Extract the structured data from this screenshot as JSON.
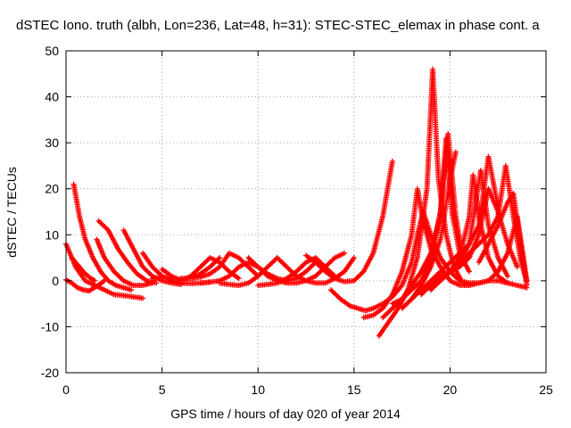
{
  "chart_data": {
    "type": "scatter",
    "title": "dSTEC Iono. truth (albh, Lon=236, Lat=48, h=31): STEC-STEC_elemax in phase cont. a",
    "xlabel": "GPS time / hours of day 020 of year 2014",
    "ylabel": "dSTEC  / TECUs",
    "xlim": [
      0,
      25
    ],
    "ylim": [
      -20,
      50
    ],
    "xticks": [
      0,
      5,
      10,
      15,
      20,
      25
    ],
    "yticks": [
      -20,
      -10,
      0,
      10,
      20,
      30,
      40,
      50
    ],
    "grid": true,
    "marker": "plus",
    "color": "#ff0000",
    "series": [
      {
        "x": [
          0.0,
          0.5,
          1.0,
          1.5,
          2.0,
          2.5,
          3.0,
          3.5,
          4.0
        ],
        "y": [
          8,
          3,
          0,
          -1,
          -2,
          -3,
          -3.2,
          -3.5,
          -3.8
        ]
      },
      {
        "x": [
          0.0,
          0.3,
          0.6,
          0.9,
          1.2,
          1.6,
          2.0
        ],
        "y": [
          0.2,
          -0.5,
          -1.5,
          -2,
          -2.2,
          -1.2,
          0
        ]
      },
      {
        "x": [
          0.4,
          0.7,
          1.0,
          1.4,
          1.8,
          2.2,
          2.6,
          3.0,
          3.4
        ],
        "y": [
          21,
          14,
          9,
          5,
          2,
          0,
          -1,
          -1.5,
          -2
        ]
      },
      {
        "x": [
          0.3,
          0.7,
          1.0,
          1.3,
          1.5
        ],
        "y": [
          5,
          3,
          1.5,
          0.5,
          0
        ]
      },
      {
        "x": [
          1.6,
          2.0,
          2.5,
          3.0,
          3.5,
          4.0,
          4.5
        ],
        "y": [
          9,
          5,
          2,
          0,
          -1,
          -1,
          -0.5
        ]
      },
      {
        "x": [
          1.7,
          2.2,
          2.7,
          3.2,
          3.7,
          4.2,
          4.7
        ],
        "y": [
          13,
          11,
          7,
          4,
          1.5,
          0,
          -0.5
        ]
      },
      {
        "x": [
          3.0,
          3.5,
          4.0,
          4.5,
          5.0,
          5.5,
          6.0
        ],
        "y": [
          11,
          7,
          3,
          1,
          0,
          -0.5,
          -0.8
        ]
      },
      {
        "x": [
          4.0,
          4.5,
          5.0,
          5.5,
          6.0,
          6.5,
          7.0,
          7.5
        ],
        "y": [
          6,
          3,
          1,
          0,
          -0.5,
          -0.6,
          -0.5,
          -0.3
        ]
      },
      {
        "x": [
          4.5,
          5.0,
          5.5,
          6.0,
          6.5,
          7.0,
          7.5,
          8.0
        ],
        "y": [
          0.5,
          0.8,
          0.5,
          0.3,
          0.5,
          1.5,
          3,
          5
        ]
      },
      {
        "x": [
          5.0,
          5.5,
          6.0,
          6.5,
          7.0,
          7.5,
          8.0,
          8.5,
          9.0
        ],
        "y": [
          2.5,
          1,
          0,
          1,
          3,
          5,
          4,
          2,
          0.5
        ]
      },
      {
        "x": [
          6.0,
          6.5,
          7.0,
          7.5,
          8.0,
          8.5,
          9.0,
          9.5,
          10.0
        ],
        "y": [
          0.5,
          0.5,
          0.8,
          1.5,
          3,
          6,
          5,
          3,
          1
        ]
      },
      {
        "x": [
          7.0,
          7.5,
          8.0,
          8.5,
          9.0,
          9.5,
          10.0,
          10.5,
          11.0
        ],
        "y": [
          -0.5,
          -0.3,
          0,
          1,
          3,
          4,
          3,
          1,
          0
        ]
      },
      {
        "x": [
          8.0,
          8.5,
          9.0,
          9.5,
          10.0,
          10.5,
          11.0,
          11.5,
          12.0
        ],
        "y": [
          -0.5,
          -0.8,
          -1,
          -0.5,
          1,
          3,
          5,
          3,
          1
        ]
      },
      {
        "x": [
          9.5,
          10.0,
          10.5,
          11.0,
          11.5,
          12.0,
          12.5,
          13.0
        ],
        "y": [
          5,
          3,
          1.5,
          0.5,
          0,
          0.5,
          2,
          4
        ]
      },
      {
        "x": [
          10.0,
          10.5,
          11.0,
          11.5,
          12.0,
          12.5,
          13.0,
          13.5,
          14.0
        ],
        "y": [
          -1,
          -0.8,
          -0.5,
          0.5,
          2,
          4,
          5,
          3,
          1
        ]
      },
      {
        "x": [
          11.0,
          11.5,
          12.0,
          12.5,
          13.0,
          13.5,
          14.0,
          14.5
        ],
        "y": [
          0,
          -0.5,
          -0.5,
          0,
          1,
          3,
          5,
          6
        ]
      },
      {
        "x": [
          12.0,
          12.5,
          13.0,
          13.5,
          14.0,
          14.5,
          15.0
        ],
        "y": [
          1,
          0,
          -0.5,
          -0.5,
          0.5,
          2,
          5
        ]
      },
      {
        "x": [
          12.5,
          13.0,
          13.5,
          14.0,
          14.5,
          15.0,
          15.5,
          16.0,
          16.5,
          17.0
        ],
        "y": [
          5.5,
          4,
          2,
          0.5,
          -0.2,
          0,
          2,
          6,
          14,
          26
        ]
      },
      {
        "x": [
          13.8,
          14.3,
          14.8,
          15.2,
          15.6,
          16.0,
          16.5,
          17.0,
          17.5,
          18.0,
          18.3,
          18.6,
          19.0,
          19.5,
          20.0,
          20.5,
          21.0,
          21.5,
          22.0,
          22.5,
          23.0,
          23.5,
          24.0
        ],
        "y": [
          -2,
          -4,
          -5.5,
          -6,
          -6.5,
          -6,
          -5,
          -3.5,
          -1,
          4,
          10,
          15,
          10,
          5,
          2,
          0,
          -0.5,
          -0.5,
          0,
          0,
          -0.5,
          -1,
          -1.5
        ]
      },
      {
        "x": [
          15.5,
          16.0,
          16.5,
          17.0,
          17.5,
          18.0,
          18.3,
          18.6,
          19.0,
          19.5,
          20.0,
          20.5,
          21.0
        ],
        "y": [
          -8,
          -7.5,
          -6,
          -3,
          2,
          10,
          20,
          13,
          7,
          3,
          0,
          -1,
          -1
        ]
      },
      {
        "x": [
          16.3,
          16.8,
          17.3,
          17.8,
          18.3,
          18.8,
          19.1,
          19.4,
          19.8,
          20.2,
          20.6
        ],
        "y": [
          -12,
          -9,
          -6,
          -2,
          5,
          20,
          46,
          22,
          10,
          3,
          0
        ]
      },
      {
        "x": [
          17.0,
          17.5,
          18.0,
          18.5,
          19.0,
          19.5,
          19.8,
          20.1,
          20.5,
          21.0
        ],
        "y": [
          -5,
          -4,
          -2,
          0,
          5,
          15,
          31,
          15,
          6,
          2
        ]
      },
      {
        "x": [
          16.5,
          17.0,
          17.5,
          18.0,
          18.5,
          19.0,
          19.5,
          19.9,
          20.3,
          20.7
        ],
        "y": [
          -8,
          -6,
          -4,
          -1,
          2,
          6,
          14,
          32,
          14,
          4
        ]
      },
      {
        "x": [
          17.5,
          18.0,
          18.5,
          19.0,
          19.5,
          20.0,
          20.3
        ],
        "y": [
          -6,
          -4,
          -1,
          3,
          9,
          22,
          28
        ]
      },
      {
        "x": [
          18.0,
          18.5,
          19.0,
          19.5,
          20.0,
          20.5,
          21.0,
          21.5,
          22.0,
          22.5
        ],
        "y": [
          -4,
          -2,
          0,
          2,
          4,
          6,
          8,
          12,
          27,
          16
        ]
      },
      {
        "x": [
          18.5,
          19.0,
          19.5,
          20.0,
          20.5,
          21.0,
          21.5,
          22.0,
          22.5,
          23.0,
          23.5
        ],
        "y": [
          -3,
          -1,
          1,
          2,
          3,
          5,
          10,
          20,
          15,
          8,
          3
        ]
      },
      {
        "x": [
          19.0,
          19.5,
          20.0,
          20.5,
          21.0,
          21.3,
          21.6,
          22.0,
          22.5,
          23.0
        ],
        "y": [
          -2,
          0,
          2,
          4,
          8,
          16,
          24,
          12,
          5,
          1
        ]
      },
      {
        "x": [
          19.5,
          20.0,
          20.5,
          21.0,
          21.5,
          22.0,
          22.5,
          22.9,
          23.3,
          23.7,
          24.0
        ],
        "y": [
          0,
          2,
          4,
          6,
          8,
          10,
          14,
          25,
          14,
          4,
          0
        ]
      },
      {
        "x": [
          20.0,
          20.5,
          21.0,
          21.2,
          21.5,
          22.0,
          22.5,
          23.0
        ],
        "y": [
          2,
          5,
          14,
          23,
          14,
          5,
          1,
          -0.5
        ]
      },
      {
        "x": [
          20.5,
          21.0,
          21.5,
          22.0,
          22.5,
          23.0,
          23.5,
          24.0
        ],
        "y": [
          0,
          -1,
          -0.5,
          0,
          2,
          6,
          14,
          0
        ]
      },
      {
        "x": [
          21.5,
          22.0,
          22.5,
          23.0,
          23.3,
          23.6,
          24.0
        ],
        "y": [
          4,
          8,
          12,
          17,
          19,
          10,
          -1
        ]
      }
    ]
  }
}
